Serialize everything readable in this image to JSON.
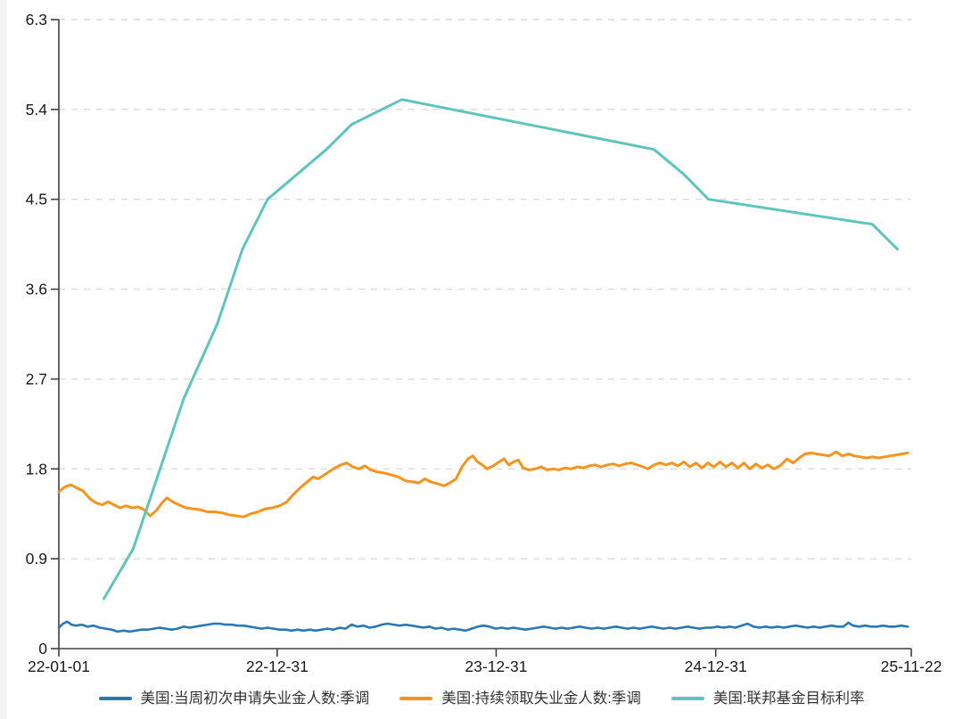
{
  "chart_data": {
    "type": "line",
    "title": "",
    "grid": "horizontal-dashed",
    "legend_position": "bottom-center",
    "colors": {
      "axis": "#404040",
      "gridline": "#dadada",
      "tick_label": "#1a1a1a"
    },
    "x_axis": {
      "unit": "date",
      "range_days": [
        0,
        1421
      ],
      "ticks": [
        {
          "label": "22-01-01",
          "day": 0
        },
        {
          "label": "22-12-31",
          "day": 364
        },
        {
          "label": "23-12-31",
          "day": 729
        },
        {
          "label": "24-12-31",
          "day": 1095
        },
        {
          "label": "25-11-22",
          "day": 1421
        }
      ]
    },
    "y_axis": {
      "min": 0,
      "max": 6.3,
      "ticks": [
        {
          "label": "0",
          "value": 0
        },
        {
          "label": "0.9",
          "value": 0.9
        },
        {
          "label": "1.8",
          "value": 1.8
        },
        {
          "label": "2.7",
          "value": 2.7
        },
        {
          "label": "3.6",
          "value": 3.6
        },
        {
          "label": "4.5",
          "value": 4.5
        },
        {
          "label": "5.4",
          "value": 5.4
        },
        {
          "label": "6.3",
          "value": 6.3
        }
      ]
    },
    "series": [
      {
        "name": "美国:当周初次申请失业金人数:季调",
        "color": "#2878b5",
        "stroke_width": 2.6,
        "points": [
          [
            0,
            0.21
          ],
          [
            7,
            0.25
          ],
          [
            14,
            0.27
          ],
          [
            21,
            0.24
          ],
          [
            28,
            0.23
          ],
          [
            38,
            0.24
          ],
          [
            48,
            0.22
          ],
          [
            58,
            0.23
          ],
          [
            68,
            0.21
          ],
          [
            78,
            0.2
          ],
          [
            88,
            0.19
          ],
          [
            98,
            0.17
          ],
          [
            108,
            0.18
          ],
          [
            118,
            0.17
          ],
          [
            128,
            0.18
          ],
          [
            138,
            0.19
          ],
          [
            148,
            0.19
          ],
          [
            158,
            0.2
          ],
          [
            168,
            0.21
          ],
          [
            178,
            0.2
          ],
          [
            188,
            0.19
          ],
          [
            198,
            0.2
          ],
          [
            208,
            0.22
          ],
          [
            218,
            0.21
          ],
          [
            228,
            0.22
          ],
          [
            238,
            0.23
          ],
          [
            248,
            0.24
          ],
          [
            258,
            0.25
          ],
          [
            268,
            0.25
          ],
          [
            278,
            0.24
          ],
          [
            288,
            0.24
          ],
          [
            298,
            0.23
          ],
          [
            308,
            0.23
          ],
          [
            318,
            0.22
          ],
          [
            328,
            0.21
          ],
          [
            338,
            0.2
          ],
          [
            348,
            0.21
          ],
          [
            358,
            0.2
          ],
          [
            368,
            0.19
          ],
          [
            378,
            0.19
          ],
          [
            388,
            0.18
          ],
          [
            398,
            0.19
          ],
          [
            408,
            0.18
          ],
          [
            418,
            0.19
          ],
          [
            428,
            0.18
          ],
          [
            438,
            0.19
          ],
          [
            448,
            0.2
          ],
          [
            458,
            0.19
          ],
          [
            468,
            0.21
          ],
          [
            478,
            0.2
          ],
          [
            488,
            0.24
          ],
          [
            498,
            0.22
          ],
          [
            508,
            0.23
          ],
          [
            518,
            0.21
          ],
          [
            528,
            0.22
          ],
          [
            538,
            0.24
          ],
          [
            548,
            0.25
          ],
          [
            558,
            0.24
          ],
          [
            568,
            0.23
          ],
          [
            578,
            0.24
          ],
          [
            588,
            0.23
          ],
          [
            598,
            0.22
          ],
          [
            608,
            0.21
          ],
          [
            618,
            0.22
          ],
          [
            628,
            0.2
          ],
          [
            638,
            0.21
          ],
          [
            648,
            0.19
          ],
          [
            658,
            0.2
          ],
          [
            668,
            0.19
          ],
          [
            678,
            0.18
          ],
          [
            688,
            0.2
          ],
          [
            698,
            0.22
          ],
          [
            708,
            0.23
          ],
          [
            718,
            0.22
          ],
          [
            728,
            0.2
          ],
          [
            738,
            0.21
          ],
          [
            748,
            0.2
          ],
          [
            758,
            0.21
          ],
          [
            768,
            0.2
          ],
          [
            778,
            0.19
          ],
          [
            788,
            0.2
          ],
          [
            798,
            0.21
          ],
          [
            808,
            0.22
          ],
          [
            818,
            0.21
          ],
          [
            828,
            0.2
          ],
          [
            838,
            0.21
          ],
          [
            848,
            0.2
          ],
          [
            858,
            0.21
          ],
          [
            868,
            0.22
          ],
          [
            878,
            0.21
          ],
          [
            888,
            0.2
          ],
          [
            898,
            0.21
          ],
          [
            908,
            0.2
          ],
          [
            918,
            0.21
          ],
          [
            928,
            0.22
          ],
          [
            938,
            0.21
          ],
          [
            948,
            0.2
          ],
          [
            958,
            0.21
          ],
          [
            968,
            0.2
          ],
          [
            978,
            0.21
          ],
          [
            988,
            0.22
          ],
          [
            998,
            0.21
          ],
          [
            1008,
            0.2
          ],
          [
            1018,
            0.21
          ],
          [
            1028,
            0.2
          ],
          [
            1038,
            0.21
          ],
          [
            1048,
            0.22
          ],
          [
            1058,
            0.21
          ],
          [
            1068,
            0.2
          ],
          [
            1078,
            0.21
          ],
          [
            1088,
            0.21
          ],
          [
            1098,
            0.22
          ],
          [
            1108,
            0.21
          ],
          [
            1118,
            0.22
          ],
          [
            1128,
            0.21
          ],
          [
            1138,
            0.23
          ],
          [
            1148,
            0.25
          ],
          [
            1158,
            0.22
          ],
          [
            1168,
            0.21
          ],
          [
            1178,
            0.22
          ],
          [
            1188,
            0.21
          ],
          [
            1198,
            0.22
          ],
          [
            1208,
            0.21
          ],
          [
            1218,
            0.22
          ],
          [
            1228,
            0.23
          ],
          [
            1238,
            0.22
          ],
          [
            1248,
            0.21
          ],
          [
            1258,
            0.22
          ],
          [
            1268,
            0.21
          ],
          [
            1278,
            0.22
          ],
          [
            1288,
            0.23
          ],
          [
            1298,
            0.22
          ],
          [
            1308,
            0.22
          ],
          [
            1316,
            0.26
          ],
          [
            1324,
            0.23
          ],
          [
            1334,
            0.22
          ],
          [
            1344,
            0.23
          ],
          [
            1354,
            0.22
          ],
          [
            1364,
            0.22
          ],
          [
            1374,
            0.23
          ],
          [
            1384,
            0.22
          ],
          [
            1394,
            0.22
          ],
          [
            1404,
            0.23
          ],
          [
            1415,
            0.22
          ]
        ]
      },
      {
        "name": "美国:持续领取失业金人数:季调",
        "color": "#f8941d",
        "stroke_width": 3,
        "points": [
          [
            0,
            1.57
          ],
          [
            10,
            1.62
          ],
          [
            20,
            1.64
          ],
          [
            30,
            1.61
          ],
          [
            40,
            1.58
          ],
          [
            52,
            1.5
          ],
          [
            62,
            1.46
          ],
          [
            72,
            1.44
          ],
          [
            82,
            1.47
          ],
          [
            92,
            1.44
          ],
          [
            102,
            1.41
          ],
          [
            112,
            1.43
          ],
          [
            122,
            1.41
          ],
          [
            132,
            1.42
          ],
          [
            142,
            1.39
          ],
          [
            152,
            1.33
          ],
          [
            162,
            1.38
          ],
          [
            172,
            1.46
          ],
          [
            180,
            1.51
          ],
          [
            190,
            1.47
          ],
          [
            200,
            1.44
          ],
          [
            212,
            1.41
          ],
          [
            224,
            1.4
          ],
          [
            236,
            1.39
          ],
          [
            248,
            1.37
          ],
          [
            260,
            1.37
          ],
          [
            272,
            1.36
          ],
          [
            284,
            1.34
          ],
          [
            296,
            1.33
          ],
          [
            308,
            1.32
          ],
          [
            320,
            1.35
          ],
          [
            332,
            1.37
          ],
          [
            344,
            1.4
          ],
          [
            356,
            1.41
          ],
          [
            368,
            1.43
          ],
          [
            380,
            1.47
          ],
          [
            392,
            1.55
          ],
          [
            404,
            1.62
          ],
          [
            416,
            1.68
          ],
          [
            424,
            1.72
          ],
          [
            432,
            1.7
          ],
          [
            440,
            1.73
          ],
          [
            450,
            1.77
          ],
          [
            460,
            1.81
          ],
          [
            470,
            1.84
          ],
          [
            480,
            1.86
          ],
          [
            490,
            1.82
          ],
          [
            500,
            1.8
          ],
          [
            510,
            1.83
          ],
          [
            520,
            1.79
          ],
          [
            530,
            1.77
          ],
          [
            542,
            1.76
          ],
          [
            554,
            1.74
          ],
          [
            566,
            1.72
          ],
          [
            578,
            1.68
          ],
          [
            590,
            1.67
          ],
          [
            600,
            1.66
          ],
          [
            610,
            1.7
          ],
          [
            620,
            1.67
          ],
          [
            632,
            1.65
          ],
          [
            642,
            1.63
          ],
          [
            652,
            1.66
          ],
          [
            662,
            1.7
          ],
          [
            672,
            1.82
          ],
          [
            682,
            1.9
          ],
          [
            690,
            1.93
          ],
          [
            698,
            1.87
          ],
          [
            706,
            1.84
          ],
          [
            714,
            1.8
          ],
          [
            724,
            1.83
          ],
          [
            734,
            1.87
          ],
          [
            742,
            1.9
          ],
          [
            750,
            1.84
          ],
          [
            758,
            1.87
          ],
          [
            766,
            1.89
          ],
          [
            774,
            1.81
          ],
          [
            784,
            1.79
          ],
          [
            794,
            1.8
          ],
          [
            804,
            1.82
          ],
          [
            814,
            1.79
          ],
          [
            824,
            1.8
          ],
          [
            834,
            1.79
          ],
          [
            844,
            1.81
          ],
          [
            854,
            1.8
          ],
          [
            864,
            1.82
          ],
          [
            874,
            1.81
          ],
          [
            884,
            1.83
          ],
          [
            894,
            1.84
          ],
          [
            904,
            1.82
          ],
          [
            914,
            1.84
          ],
          [
            924,
            1.85
          ],
          [
            934,
            1.83
          ],
          [
            944,
            1.85
          ],
          [
            954,
            1.86
          ],
          [
            964,
            1.84
          ],
          [
            974,
            1.82
          ],
          [
            982,
            1.8
          ],
          [
            992,
            1.84
          ],
          [
            1002,
            1.86
          ],
          [
            1012,
            1.84
          ],
          [
            1022,
            1.86
          ],
          [
            1032,
            1.83
          ],
          [
            1042,
            1.87
          ],
          [
            1052,
            1.82
          ],
          [
            1062,
            1.86
          ],
          [
            1072,
            1.81
          ],
          [
            1082,
            1.86
          ],
          [
            1092,
            1.82
          ],
          [
            1102,
            1.87
          ],
          [
            1112,
            1.82
          ],
          [
            1122,
            1.86
          ],
          [
            1132,
            1.81
          ],
          [
            1142,
            1.86
          ],
          [
            1152,
            1.8
          ],
          [
            1162,
            1.85
          ],
          [
            1172,
            1.81
          ],
          [
            1182,
            1.84
          ],
          [
            1192,
            1.8
          ],
          [
            1202,
            1.83
          ],
          [
            1214,
            1.9
          ],
          [
            1224,
            1.86
          ],
          [
            1234,
            1.91
          ],
          [
            1244,
            1.95
          ],
          [
            1254,
            1.96
          ],
          [
            1264,
            1.95
          ],
          [
            1274,
            1.94
          ],
          [
            1284,
            1.93
          ],
          [
            1296,
            1.97
          ],
          [
            1306,
            1.93
          ],
          [
            1316,
            1.95
          ],
          [
            1326,
            1.93
          ],
          [
            1336,
            1.92
          ],
          [
            1346,
            1.91
          ],
          [
            1356,
            1.92
          ],
          [
            1366,
            1.91
          ],
          [
            1376,
            1.92
          ],
          [
            1386,
            1.93
          ],
          [
            1396,
            1.94
          ],
          [
            1406,
            1.95
          ],
          [
            1415,
            1.96
          ]
        ]
      },
      {
        "name": "美国:联邦基金目标利率",
        "color": "#5fc4c0",
        "stroke_width": 3,
        "points": [
          [
            75,
            0.5
          ],
          [
            124,
            1.0
          ],
          [
            166,
            1.75
          ],
          [
            208,
            2.5
          ],
          [
            264,
            3.25
          ],
          [
            306,
            4.0
          ],
          [
            348,
            4.5
          ],
          [
            397,
            4.75
          ],
          [
            446,
            5.0
          ],
          [
            488,
            5.25
          ],
          [
            572,
            5.5
          ],
          [
            992,
            5.0
          ],
          [
            1042,
            4.75
          ],
          [
            1083,
            4.5
          ],
          [
            1356,
            4.25
          ],
          [
            1398,
            4.0
          ]
        ]
      }
    ]
  }
}
